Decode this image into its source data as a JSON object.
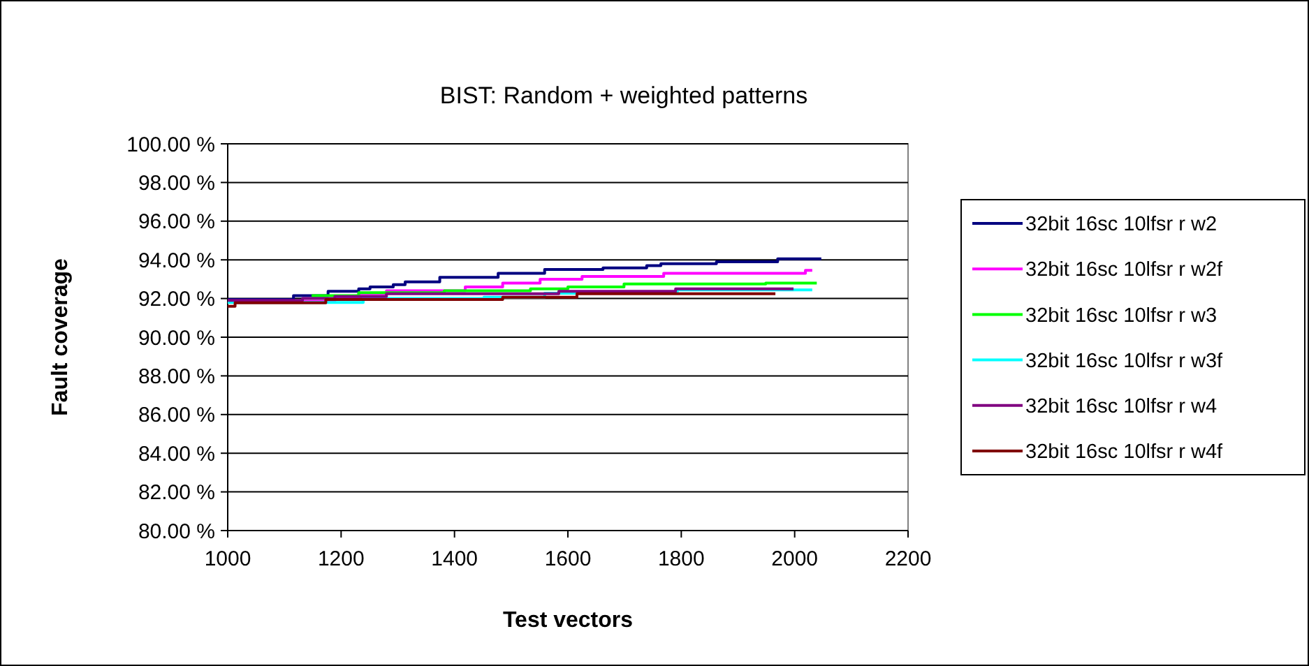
{
  "chart_data": {
    "type": "step",
    "title": "BIST: Random + weighted patterns",
    "xlabel": "Test vectors",
    "ylabel": "Fault coverage",
    "xlim": [
      1000,
      2200
    ],
    "xticks": [
      1000,
      1200,
      1400,
      1600,
      1800,
      2000,
      2200
    ],
    "ylim": [
      80,
      100
    ],
    "yticks": [
      {
        "value": 80,
        "label": "80.00 %"
      },
      {
        "value": 82,
        "label": "82.00 %"
      },
      {
        "value": 84,
        "label": "84.00 %"
      },
      {
        "value": 86,
        "label": "86.00 %"
      },
      {
        "value": 88,
        "label": "88.00 %"
      },
      {
        "value": 90,
        "label": "90.00 %"
      },
      {
        "value": 92,
        "label": "92.00 %"
      },
      {
        "value": 94,
        "label": "94.00 %"
      },
      {
        "value": 96,
        "label": "96.00 %"
      },
      {
        "value": 98,
        "label": "98.00 %"
      },
      {
        "value": 100,
        "label": "100.00 %"
      }
    ],
    "grid": "y",
    "legend": "right",
    "marker": "none",
    "line_style": "solid",
    "series": [
      {
        "name": "32bit  16sc  10lfsr r w2",
        "color": "#000080",
        "x": [
          1000,
          1116,
          1177,
          1231,
          1251,
          1292,
          1313,
          1374,
          1477,
          1559,
          1662,
          1739,
          1764,
          1862,
          1970,
          2047
        ],
        "values": [
          91.95,
          92.15,
          92.37,
          92.5,
          92.6,
          92.72,
          92.86,
          93.1,
          93.3,
          93.5,
          93.58,
          93.7,
          93.8,
          93.9,
          94.05,
          94.05
        ]
      },
      {
        "name": "32bit  16sc  10lfsr r w2f",
        "color": "#ff00ff",
        "x": [
          1000,
          1189,
          1231,
          1280,
          1419,
          1485,
          1551,
          1625,
          1769,
          2019,
          2031
        ],
        "values": [
          91.85,
          92.07,
          92.25,
          92.4,
          92.6,
          92.8,
          93.0,
          93.14,
          93.3,
          93.46,
          93.46
        ]
      },
      {
        "name": "32bit  16sc  10lfsr r w3",
        "color": "#00ff00",
        "x": [
          1148,
          1231,
          1382,
          1534,
          1600,
          1699,
          1949,
          2039
        ],
        "values": [
          92.15,
          92.3,
          92.4,
          92.5,
          92.6,
          92.75,
          92.8,
          92.8
        ]
      },
      {
        "name": "32bit  16sc  10lfsr r w3f",
        "color": "#00ffff",
        "x": [
          1000,
          1239,
          1452,
          1559,
          1793,
          2031
        ],
        "values": [
          91.8,
          92.0,
          92.07,
          92.27,
          92.45,
          92.45
        ]
      },
      {
        "name": "32bit  16sc  10lfsr r w4",
        "color": "#800080",
        "x": [
          1000,
          1132,
          1189,
          1280,
          1584,
          1790,
          1998
        ],
        "values": [
          91.9,
          92.0,
          92.1,
          92.25,
          92.37,
          92.5,
          92.5
        ]
      },
      {
        "name": "32bit  16sc  10lfsr r w4f",
        "color": "#800000",
        "x": [
          1000,
          1013,
          1173,
          1485,
          1616,
          1966
        ],
        "values": [
          91.6,
          91.78,
          91.95,
          92.07,
          92.25,
          92.25
        ]
      }
    ]
  }
}
